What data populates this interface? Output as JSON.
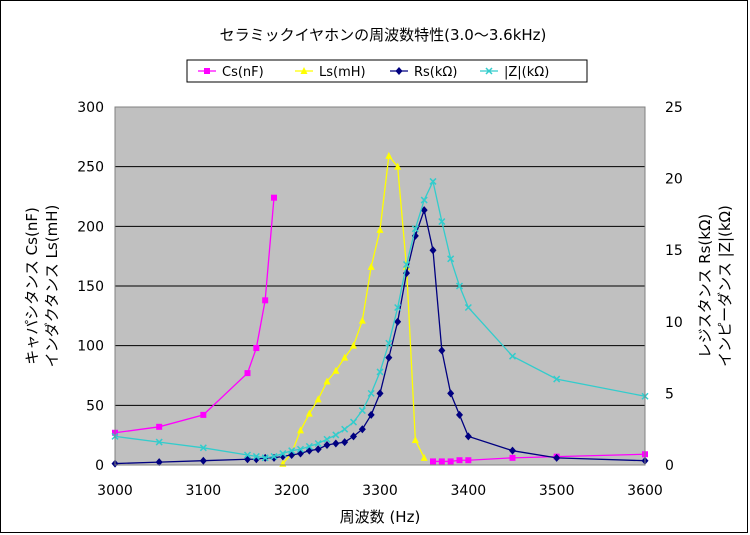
{
  "chart_data": {
    "type": "line",
    "title": "セラミックイヤホンの周波数特性(3.0〜3.6kHz)",
    "xlabel": "周波数 (Hz)",
    "ylabel_left": [
      "キャパシタンス Cs(nF)",
      "インダクタンス Ls(mH)"
    ],
    "ylabel_right": [
      "レジスタンス Rs(kΩ)",
      "インピーダンス |Z|(kΩ)"
    ],
    "xlim": [
      3000,
      3600
    ],
    "xticks": [
      3000,
      3100,
      3200,
      3300,
      3400,
      3500,
      3600
    ],
    "ylim_left": [
      0,
      300
    ],
    "yticks_left": [
      0,
      50,
      100,
      150,
      200,
      250,
      300
    ],
    "ylim_right": [
      0,
      25
    ],
    "yticks_right": [
      0,
      5,
      10,
      15,
      20,
      25
    ],
    "grid": true,
    "legend_position": "top",
    "background": "#c0c0c0",
    "series": [
      {
        "name": "Cs(nF)",
        "axis": "left",
        "color": "#ff00ff",
        "marker": "square",
        "segments": [
          {
            "x": [
              3000,
              3050,
              3100,
              3150,
              3160,
              3170,
              3180
            ],
            "y": [
              27,
              32,
              42,
              77,
              98,
              138,
              224
            ]
          },
          {
            "x": [
              3360,
              3370,
              3380,
              3390,
              3400,
              3450,
              3500,
              3600
            ],
            "y": [
              3,
              3,
              3,
              4,
              4,
              6,
              7,
              9
            ]
          }
        ]
      },
      {
        "name": "Ls(mH)",
        "axis": "left",
        "color": "#ffff00",
        "marker": "triangle",
        "segments": [
          {
            "x": [
              3190,
              3200,
              3210,
              3220,
              3230,
              3240,
              3250,
              3260,
              3270,
              3280,
              3290,
              3300,
              3310,
              3320,
              3330,
              3340,
              3350
            ],
            "y": [
              1,
              10,
              29,
              43,
              55,
              70,
              79,
              90,
              100,
              121,
              166,
              197,
              259,
              250,
              166,
              21,
              6
            ]
          }
        ]
      },
      {
        "name": "Rs(kΩ)",
        "axis": "right",
        "color": "#000080",
        "marker": "diamond",
        "segments": [
          {
            "x": [
              3000,
              3050,
              3100,
              3150,
              3160,
              3170,
              3180,
              3190,
              3200,
              3210,
              3220,
              3230,
              3240,
              3250,
              3260,
              3270,
              3280,
              3290,
              3300,
              3310,
              3320,
              3330,
              3340,
              3350,
              3360,
              3370,
              3380,
              3390,
              3400,
              3450,
              3500,
              3600
            ],
            "y": [
              0.1,
              0.2,
              0.3,
              0.4,
              0.4,
              0.5,
              0.5,
              0.6,
              0.7,
              0.8,
              1.0,
              1.1,
              1.4,
              1.5,
              1.6,
              2.0,
              2.5,
              3.5,
              5.0,
              7.5,
              10.0,
              13.4,
              16.0,
              17.8,
              15.0,
              8.0,
              5.0,
              3.5,
              2.0,
              1.0,
              0.5,
              0.3
            ]
          }
        ]
      },
      {
        "name": "|Z|(kΩ)",
        "axis": "right",
        "color": "#33cccc",
        "marker": "x",
        "segments": [
          {
            "x": [
              3000,
              3050,
              3100,
              3150,
              3160,
              3170,
              3180,
              3190,
              3200,
              3210,
              3220,
              3230,
              3240,
              3250,
              3260,
              3270,
              3280,
              3290,
              3300,
              3310,
              3320,
              3330,
              3340,
              3350,
              3360,
              3370,
              3380,
              3390,
              3400,
              3450,
              3500,
              3600
            ],
            "y": [
              2.0,
              1.6,
              1.2,
              0.7,
              0.6,
              0.5,
              0.6,
              0.8,
              1.0,
              1.1,
              1.3,
              1.5,
              1.8,
              2.1,
              2.5,
              3.0,
              3.8,
              5.0,
              6.5,
              8.5,
              11.0,
              14.0,
              16.5,
              18.5,
              19.8,
              17.0,
              14.4,
              12.5,
              11.0,
              7.6,
              6.0,
              4.8
            ]
          }
        ]
      }
    ]
  }
}
